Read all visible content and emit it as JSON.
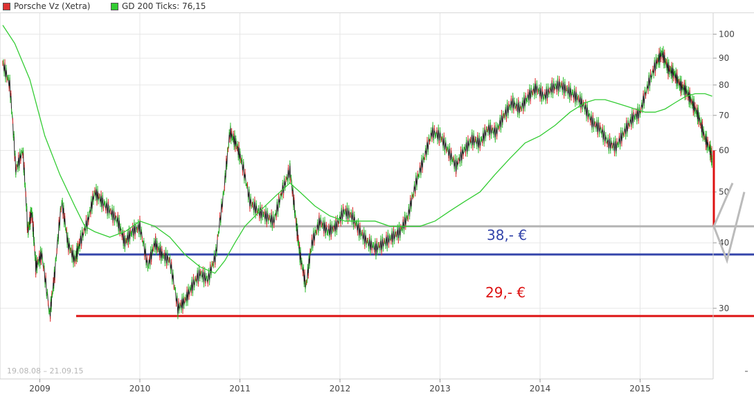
{
  "legend": {
    "price_series_label": "Porsche Vz (Xetra)",
    "price_series_color": "#dd3333",
    "ma_series_label": "GD 200 Ticks: 76,15",
    "ma_series_color": "#33cc33"
  },
  "date_range": "19.08.08 – 21.09.15",
  "annotations": {
    "support_38_label": "38,- €",
    "support_38_color": "#3344aa",
    "support_29_label": "29,- €",
    "support_29_color": "#dd1111"
  },
  "chart_data": {
    "type": "line",
    "y_scale": "log",
    "ylim": [
      22,
      110
    ],
    "xlim": [
      2008.63,
      2015.73
    ],
    "grid": true,
    "legend_position": "top-left",
    "y_tick_labels": [
      "100",
      "90",
      "80",
      "70",
      "60",
      "50",
      "40",
      "30"
    ],
    "y_ticks": [
      100,
      90,
      80,
      70,
      60,
      50,
      40,
      30
    ],
    "x_tick_labels": [
      "2009",
      "2010",
      "2011",
      "2012",
      "2013",
      "2014",
      "2015"
    ],
    "x_ticks": [
      2009,
      2010,
      2011,
      2012,
      2013,
      2014,
      2015
    ],
    "series": [
      {
        "name": "Porsche Vz (Xetra)",
        "kind": "price",
        "color": "#dd3333",
        "x": [
          2008.63,
          2008.7,
          2008.76,
          2008.83,
          2008.88,
          2008.92,
          2008.96,
          2009.02,
          2009.1,
          2009.15,
          2009.22,
          2009.28,
          2009.35,
          2009.4,
          2009.48,
          2009.55,
          2009.62,
          2009.7,
          2009.78,
          2009.85,
          2009.92,
          2010.0,
          2010.08,
          2010.15,
          2010.22,
          2010.3,
          2010.38,
          2010.45,
          2010.52,
          2010.6,
          2010.68,
          2010.76,
          2010.84,
          2010.9,
          2010.96,
          2011.02,
          2011.1,
          2011.18,
          2011.26,
          2011.34,
          2011.42,
          2011.5,
          2011.56,
          2011.6,
          2011.66,
          2011.72,
          2011.8,
          2011.88,
          2011.96,
          2012.04,
          2012.12,
          2012.2,
          2012.28,
          2012.36,
          2012.44,
          2012.52,
          2012.6,
          2012.68,
          2012.76,
          2012.84,
          2012.92,
          2013.0,
          2013.08,
          2013.16,
          2013.24,
          2013.32,
          2013.4,
          2013.48,
          2013.56,
          2013.64,
          2013.72,
          2013.8,
          2013.88,
          2013.96,
          2014.04,
          2014.12,
          2014.2,
          2014.28,
          2014.36,
          2014.44,
          2014.52,
          2014.6,
          2014.68,
          2014.76,
          2014.84,
          2014.92,
          2015.0,
          2015.08,
          2015.16,
          2015.22,
          2015.28,
          2015.34,
          2015.4,
          2015.46,
          2015.52,
          2015.58,
          2015.64,
          2015.7,
          2015.72
        ],
        "y": [
          88,
          80,
          55,
          60,
          42,
          46,
          36,
          38,
          29,
          35,
          48,
          40,
          37,
          40,
          44,
          50,
          48,
          46,
          44,
          40,
          42,
          43,
          36,
          40,
          38,
          37,
          30,
          31,
          33,
          35,
          34,
          38,
          50,
          65,
          62,
          57,
          48,
          46,
          45,
          44,
          50,
          55,
          44,
          38,
          33,
          40,
          44,
          42,
          43,
          46,
          45,
          42,
          40,
          39,
          40,
          41,
          42,
          45,
          52,
          58,
          65,
          64,
          60,
          56,
          60,
          63,
          62,
          66,
          65,
          70,
          74,
          72,
          76,
          79,
          76,
          79,
          80,
          78,
          76,
          73,
          68,
          66,
          62,
          61,
          65,
          69,
          71,
          80,
          88,
          92,
          86,
          84,
          80,
          78,
          74,
          70,
          64,
          60,
          58
        ]
      },
      {
        "name": "GD 200 Ticks: 76,15",
        "kind": "moving-average",
        "color": "#33cc33",
        "x": [
          2008.63,
          2008.75,
          2008.9,
          2009.05,
          2009.2,
          2009.35,
          2009.45,
          2009.55,
          2009.7,
          2009.85,
          2010.0,
          2010.15,
          2010.3,
          2010.45,
          2010.6,
          2010.75,
          2010.85,
          2010.95,
          2011.05,
          2011.2,
          2011.35,
          2011.5,
          2011.6,
          2011.75,
          2011.9,
          2012.05,
          2012.2,
          2012.35,
          2012.5,
          2012.65,
          2012.8,
          2012.95,
          2013.1,
          2013.25,
          2013.4,
          2013.55,
          2013.7,
          2013.85,
          2014.0,
          2014.15,
          2014.3,
          2014.45,
          2014.55,
          2014.65,
          2014.75,
          2014.85,
          2014.95,
          2015.05,
          2015.15,
          2015.25,
          2015.35,
          2015.45,
          2015.55,
          2015.65,
          2015.72
        ],
        "y": [
          104,
          96,
          82,
          64,
          54,
          47,
          43,
          42,
          41,
          42,
          44,
          43,
          41,
          38,
          36,
          35,
          37,
          40,
          43,
          46,
          49,
          52,
          50,
          47,
          45,
          44,
          44,
          44,
          43,
          43,
          43,
          44,
          46,
          48,
          50,
          54,
          58,
          62,
          64,
          67,
          71,
          74,
          75,
          75,
          74,
          73,
          72,
          71,
          71,
          72,
          74,
          76,
          77,
          77,
          76.15
        ]
      }
    ],
    "horizontal_lines": [
      {
        "value": 43,
        "color": "#b4b4b4"
      },
      {
        "value": 38,
        "color": "#3344aa"
      },
      {
        "value": 29,
        "color": "#dd1111"
      }
    ]
  }
}
